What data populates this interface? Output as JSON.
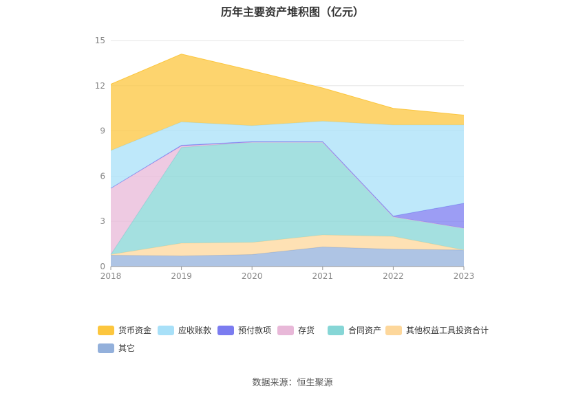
{
  "chart_data": {
    "type": "area",
    "stacked": true,
    "title": "历年主要资产堆积图（亿元）",
    "xlabel": "",
    "ylabel": "",
    "ylim": [
      0,
      15
    ],
    "yticks": [
      0,
      3,
      6,
      9,
      12,
      15
    ],
    "categories": [
      "2018",
      "2019",
      "2020",
      "2021",
      "2022",
      "2023"
    ],
    "grid": true,
    "legend_position": "bottom",
    "series": [
      {
        "name": "其它",
        "color": "#93b0db",
        "values": [
          0.75,
          0.7,
          0.8,
          1.3,
          1.15,
          1.1
        ]
      },
      {
        "name": "其他权益工具投资合计",
        "color": "#fdd79b",
        "values": [
          0.05,
          0.85,
          0.8,
          0.8,
          0.85,
          0.0
        ]
      },
      {
        "name": "合同资产",
        "color": "#86d6d6",
        "values": [
          0.0,
          6.35,
          6.65,
          6.15,
          1.3,
          1.45
        ]
      },
      {
        "name": "存货",
        "color": "#e8b8d8",
        "values": [
          4.4,
          0.1,
          0.0,
          0.0,
          0.0,
          0.0
        ]
      },
      {
        "name": "预付款项",
        "color": "#7b7cf0",
        "values": [
          0.0,
          0.05,
          0.05,
          0.05,
          0.05,
          1.65
        ]
      },
      {
        "name": "应收账款",
        "color": "#a8e0f8",
        "values": [
          2.5,
          1.55,
          1.05,
          1.35,
          6.05,
          5.2
        ]
      },
      {
        "name": "货币资金",
        "color": "#fcc63e",
        "values": [
          4.4,
          4.5,
          3.65,
          2.2,
          1.1,
          0.65
        ]
      }
    ],
    "legend_order": [
      "货币资金",
      "应收账款",
      "预付款项",
      "存货",
      "合同资产",
      "其他权益工具投资合计",
      "其它"
    ]
  },
  "source_text": "数据来源：恒生聚源"
}
